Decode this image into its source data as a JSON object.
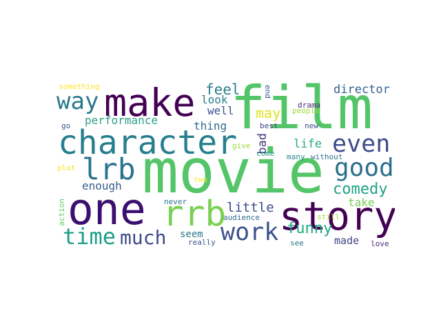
{
  "words": [
    {
      "text": "film",
      "color": "#53c568"
    },
    {
      "text": "movie",
      "color": "#54c568"
    },
    {
      "text": "character",
      "color": "#277f8e"
    },
    {
      "text": "make",
      "color": "#440154"
    },
    {
      "text": "one",
      "color": "#3b0f70"
    },
    {
      "text": "story",
      "color": "#440154"
    },
    {
      "text": "rrb",
      "color": "#7ad151"
    },
    {
      "text": "lrb",
      "color": "#2c728e"
    },
    {
      "text": "way",
      "color": "#2a788e"
    },
    {
      "text": "time",
      "color": "#1f9e89"
    },
    {
      "text": "much",
      "color": "#3e4989"
    },
    {
      "text": "work",
      "color": "#3b528b"
    },
    {
      "text": "even",
      "color": "#3e4c8a"
    },
    {
      "text": "good",
      "color": "#2d708e"
    },
    {
      "text": "comedy",
      "color": "#1fa187"
    },
    {
      "text": "director",
      "color": "#355f8d"
    },
    {
      "text": "performance",
      "color": "#2e9e88"
    },
    {
      "text": "enough",
      "color": "#365c8d"
    },
    {
      "text": "feel",
      "color": "#2c7e8e"
    },
    {
      "text": "look",
      "color": "#287c8e"
    },
    {
      "text": "well",
      "color": "#3b528b"
    },
    {
      "text": "thing",
      "color": "#2f6b8e"
    },
    {
      "text": "may",
      "color": "#e3e418"
    },
    {
      "text": "life",
      "color": "#25ab82"
    },
    {
      "text": "little",
      "color": "#3e4a89"
    },
    {
      "text": "take",
      "color": "#75d054"
    },
    {
      "text": "funny",
      "color": "#22a785"
    },
    {
      "text": "made",
      "color": "#404387"
    },
    {
      "text": "seem",
      "color": "#2a788e"
    },
    {
      "text": "bad",
      "color": "#46327e"
    },
    {
      "text": "drama",
      "color": "#482576"
    },
    {
      "text": "people",
      "color": "#a0da39"
    },
    {
      "text": "best",
      "color": "#424086"
    },
    {
      "text": "new",
      "color": "#3e4a89"
    },
    {
      "text": "give",
      "color": "#9dd93b"
    },
    {
      "text": "come",
      "color": "#1fa088"
    },
    {
      "text": "many",
      "color": "#25858e"
    },
    {
      "text": "without",
      "color": "#2e6e8e"
    },
    {
      "text": "end",
      "color": "#35608d"
    },
    {
      "text": "something",
      "color": "#fde725"
    },
    {
      "text": "go",
      "color": "#3a548c"
    },
    {
      "text": "plot",
      "color": "#f1e51d"
    },
    {
      "text": "two",
      "color": "#fde725"
    },
    {
      "text": "action",
      "color": "#5ec962"
    },
    {
      "text": "never",
      "color": "#2c728e"
    },
    {
      "text": "audience",
      "color": "#2e6e8e"
    },
    {
      "text": "really",
      "color": "#3b528b"
    },
    {
      "text": "still",
      "color": "#a8db34"
    },
    {
      "text": "see",
      "color": "#2a768e"
    },
    {
      "text": "love",
      "color": "#482878"
    }
  ]
}
